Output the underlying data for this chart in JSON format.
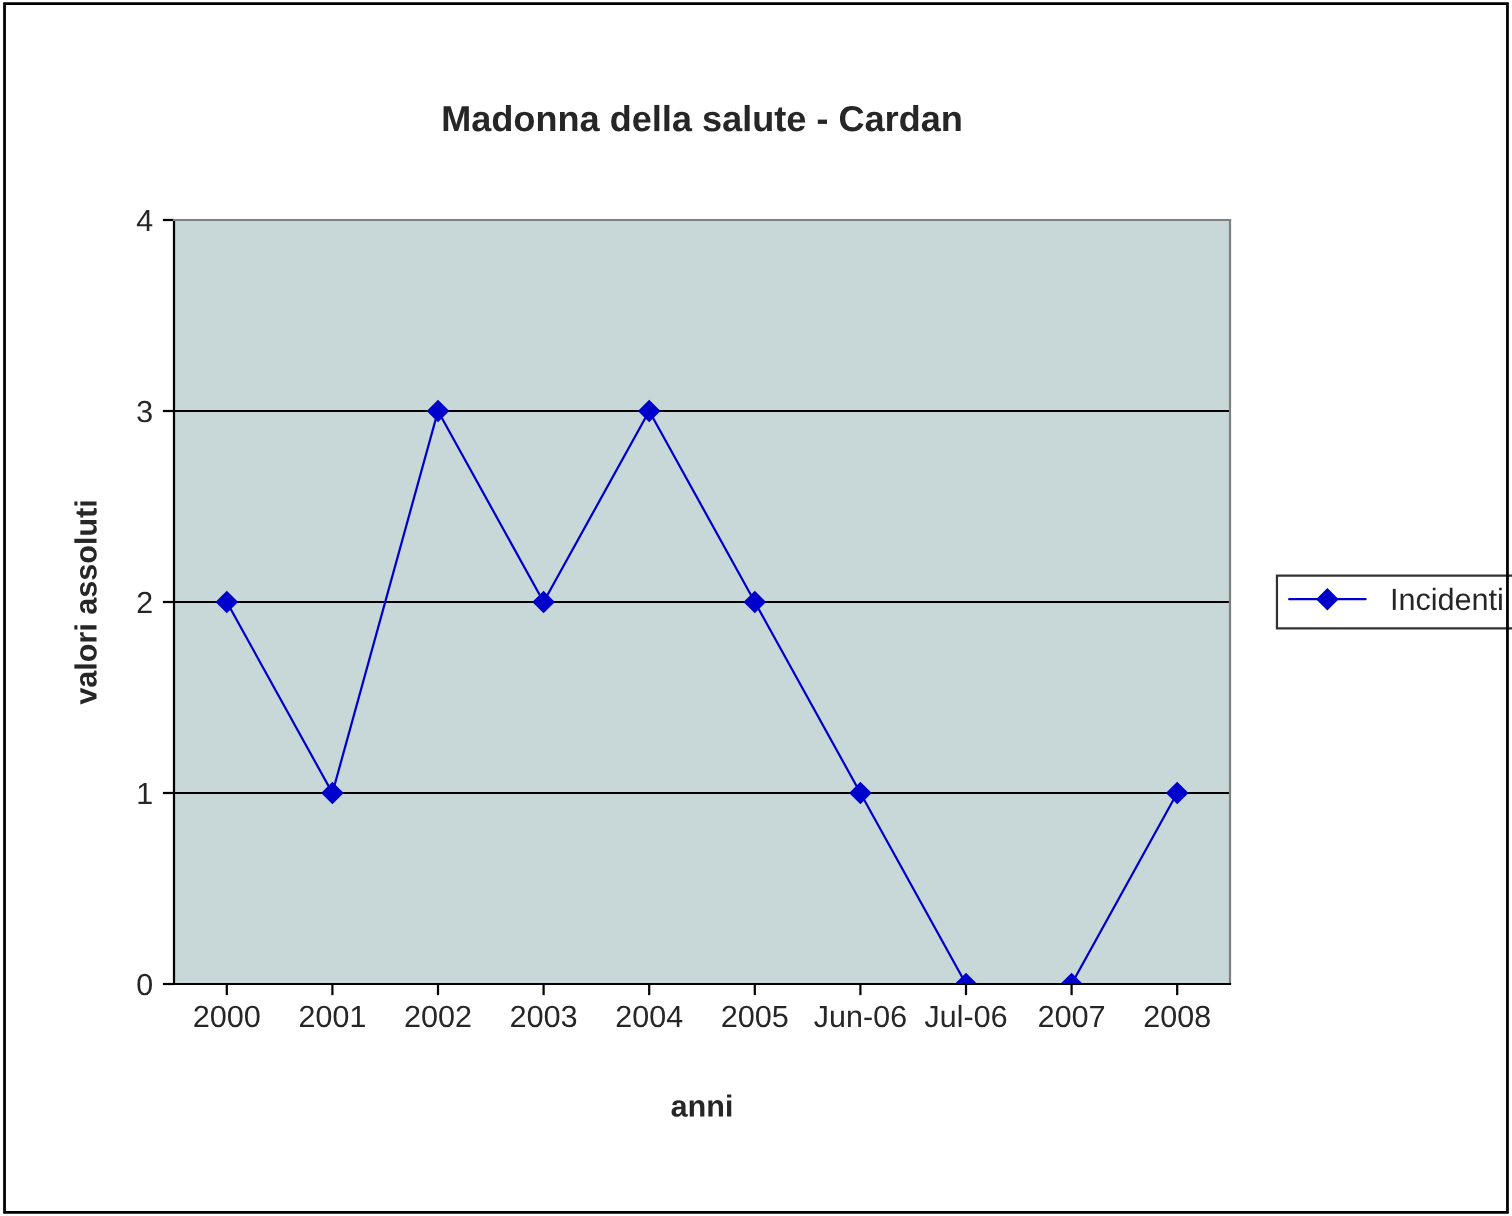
{
  "chart_data": {
    "type": "line",
    "title": "Madonna della salute - Cardan",
    "xlabel": "anni",
    "ylabel": "valori assoluti",
    "categories": [
      "2000",
      "2001",
      "2002",
      "2003",
      "2004",
      "2005",
      "Jun-06",
      "Jul-06",
      "2007",
      "2008"
    ],
    "series": [
      {
        "name": "Incidenti",
        "color": "#0000cc",
        "values": [
          2,
          1,
          3,
          2,
          3,
          2,
          1,
          0,
          0,
          1
        ]
      }
    ],
    "ylim": [
      0,
      4
    ],
    "yticks": [
      0,
      1,
      2,
      3,
      4
    ],
    "grid": "y",
    "legend": "right",
    "marker": "diamond",
    "line_style": "solid"
  }
}
